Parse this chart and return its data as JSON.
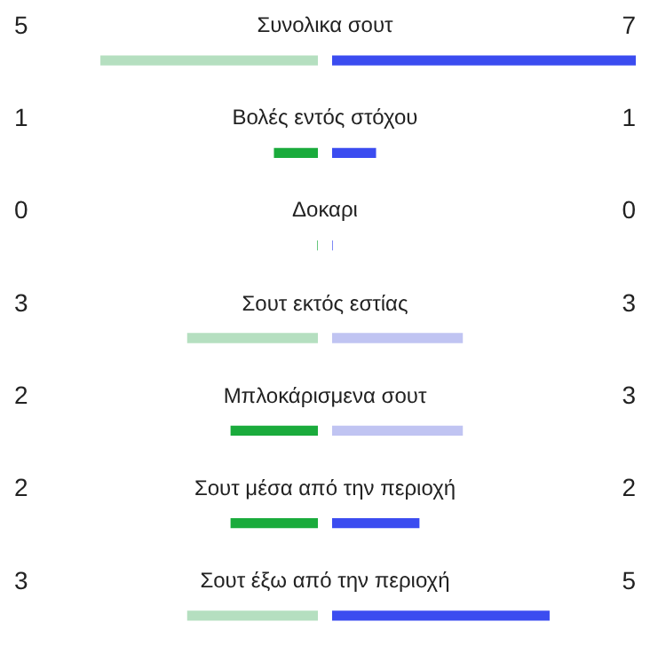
{
  "chart_data": [
    {
      "type": "bar",
      "orientation": "horizontal",
      "data_labels": true,
      "tick_labels": false,
      "categories": [
        "Συνολικα σουτ",
        "Βολές εντός στόχου",
        "Δοκαρι",
        "Σουτ εκτός εστίας",
        "Μπλοκάρισμενα σουτ",
        "Σουτ μέσα από την περιοχή",
        "Σουτ έξω από την περιοχή"
      ],
      "values": [
        5,
        1,
        0,
        3,
        2,
        2,
        3
      ],
      "colors": [
        "#b5dfc0",
        "#1aab3c",
        "#1aab3c",
        "#b5dfc0",
        "#1aab3c",
        "#1aab3c",
        "#b5dfc0"
      ]
    },
    {
      "type": "bar",
      "orientation": "horizontal",
      "data_labels": true,
      "tick_labels": false,
      "categories": [
        null,
        null,
        null,
        null,
        null,
        null,
        null
      ],
      "values": [
        7,
        1,
        0,
        3,
        3,
        2,
        5
      ],
      "colors": [
        "#3b4cf0",
        "#3b4cf0",
        "#3b4cf0",
        "#c0c4f2",
        "#c0c4f2",
        "#3b4cf0",
        "#3b4cf0"
      ]
    }
  ]
}
